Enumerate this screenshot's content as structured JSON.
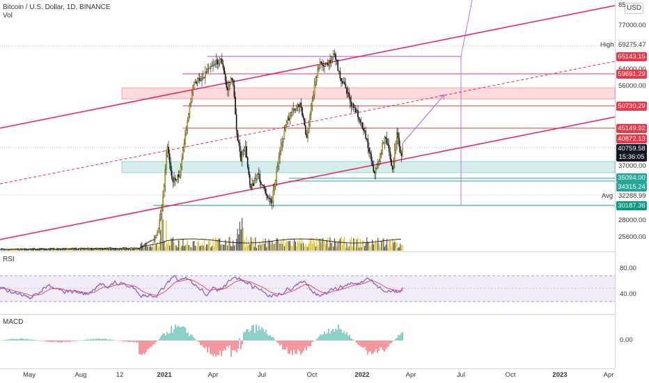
{
  "header": {
    "symbol": "Bitcoin / U.S. Dollar, 1D, BINANCE",
    "vol_label": "Vol",
    "currency": "USD"
  },
  "colors": {
    "red": "#f23645",
    "pink_line": "#e91e63",
    "purple": "#b279d8",
    "green": "#26a69a",
    "candle": "#000000",
    "candle_up": "#f5d800",
    "volume": "#d4b400",
    "rsi_line": "#7e57c2",
    "rsi_ma": "#f23645",
    "rsi_band": "#ede7f6"
  },
  "chart_data": [
    {
      "type": "candlestick",
      "title": "Bitcoin / U.S. Dollar, 1D, BINANCE",
      "y_scale": "log",
      "y_ticks": [
        "85",
        "77000.00",
        "64000.00",
        "56000.00",
        "37000.00",
        "32288.99",
        "28000.00",
        "25600.00"
      ],
      "x_ticks": [
        "May",
        "Aug",
        "12",
        "2021",
        "Apr",
        "Jul",
        "Oct",
        "2022",
        "Apr",
        "Jul",
        "Oct",
        "2023",
        "Apr"
      ],
      "price_tags": [
        {
          "label": "High",
          "value": "69275.47",
          "kind": "plain"
        },
        {
          "value": "65143.15",
          "kind": "red"
        },
        {
          "value": "59691.29",
          "kind": "red"
        },
        {
          "value": "50730.29",
          "kind": "red"
        },
        {
          "value": "45149.92",
          "kind": "red"
        },
        {
          "value": "40872.13",
          "kind": "red"
        },
        {
          "value": "40759.58",
          "kind": "dark",
          "sub": "15:36:05"
        },
        {
          "value": "35094.00",
          "kind": "green"
        },
        {
          "value": "34315.24",
          "kind": "green"
        },
        {
          "label": "Avg",
          "value": "32288.99",
          "kind": "plain"
        },
        {
          "value": "30187.36",
          "kind": "teal"
        }
      ],
      "series": [
        {
          "name": "Vol",
          "type": "volume"
        }
      ]
    },
    {
      "type": "line",
      "title": "RSI",
      "y_ticks": [
        "80.00",
        "40.00"
      ]
    },
    {
      "type": "histogram",
      "title": "MACD",
      "y_ticks": [
        "0.00"
      ]
    }
  ]
}
